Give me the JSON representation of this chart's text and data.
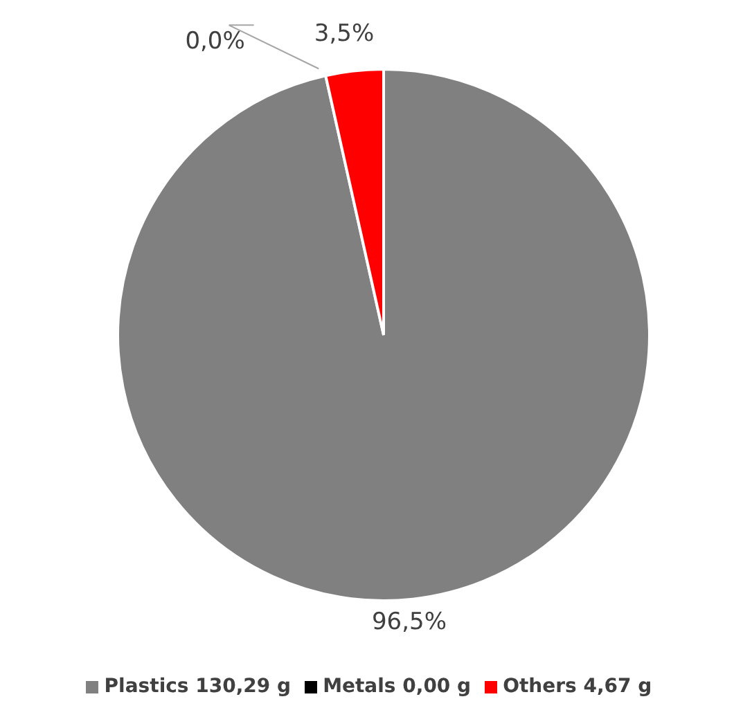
{
  "chart_data": {
    "type": "pie",
    "categories": [
      "Plastics 130,29 g",
      "Metals 0,00 g",
      "Others 4,67 g"
    ],
    "values": [
      96.5,
      0,
      3.5
    ],
    "colors": [
      "#808080",
      "#000000",
      "#ff0000"
    ],
    "value_labels": [
      "96,5%",
      "0,0%",
      "3,5%"
    ],
    "legend": "bottom"
  }
}
